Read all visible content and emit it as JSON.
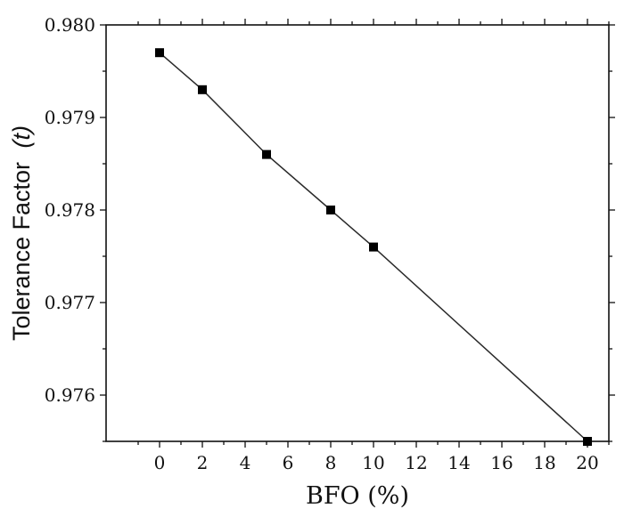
{
  "chart_data": {
    "type": "line",
    "title": "",
    "xlabel": "BFO (%)",
    "ylabel": "Tolerance Factor",
    "ylabel_symbol": "(t)",
    "xlim": [
      -2.5,
      21
    ],
    "ylim": [
      0.9755,
      0.98
    ],
    "xticks": [
      0,
      2,
      4,
      6,
      8,
      10,
      12,
      14,
      16,
      18,
      20
    ],
    "yticks": [
      0.976,
      0.977,
      0.978,
      0.979,
      0.98
    ],
    "ytick_labels": [
      "0.976",
      "0.977",
      "0.978",
      "0.979",
      "0.980"
    ],
    "grid": false,
    "series": [
      {
        "x": [
          0,
          2,
          5,
          8,
          10,
          20
        ],
        "y": [
          0.9797,
          0.9793,
          0.9786,
          0.978,
          0.9776,
          0.9755
        ],
        "marker": "square",
        "color": "#000000"
      }
    ]
  }
}
